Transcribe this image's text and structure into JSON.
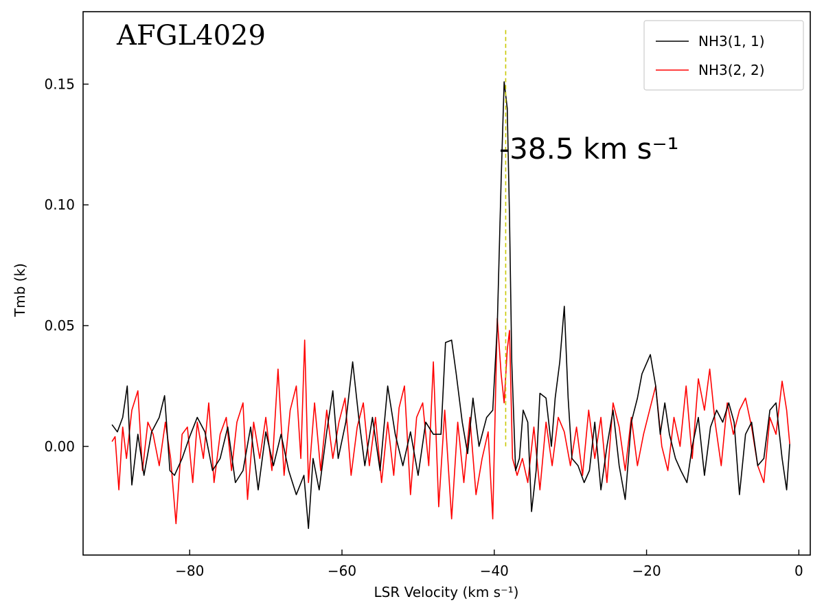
{
  "chart_data": {
    "type": "line",
    "title": "AFGL4029",
    "xlabel": "LSR Velocity (km s⁻¹)",
    "ylabel": "Tmb (k)",
    "xlim": [
      -94,
      1.5
    ],
    "ylim": [
      -0.045,
      0.18
    ],
    "x_ticks": [
      -80,
      -60,
      -40,
      -20,
      0
    ],
    "x_tick_labels": [
      "−80",
      "−60",
      "−40",
      "−20",
      "0"
    ],
    "y_ticks": [
      0.0,
      0.05,
      0.1,
      0.15
    ],
    "y_tick_labels": [
      "0.00",
      "0.05",
      "0.10",
      "0.15"
    ],
    "grid": false,
    "legend_position": "top-right",
    "annotation": {
      "text": "-38.5 km s⁻¹",
      "x": -38.5,
      "line_y_range": [
        0.0,
        0.173
      ],
      "line_color": "#c8c800"
    },
    "series": [
      {
        "name": "NH3(1, 1)",
        "color": "#000000",
        "points": [
          [
            -90.2,
            0.009
          ],
          [
            -89.5,
            0.006
          ],
          [
            -88.8,
            0.012
          ],
          [
            -88.2,
            0.025
          ],
          [
            -87.6,
            -0.016
          ],
          [
            -86.8,
            0.005
          ],
          [
            -86.0,
            -0.012
          ],
          [
            -85.0,
            0.006
          ],
          [
            -84.0,
            0.012
          ],
          [
            -83.3,
            0.021
          ],
          [
            -82.6,
            -0.01
          ],
          [
            -82.0,
            -0.012
          ],
          [
            -81.0,
            -0.005
          ],
          [
            -80.0,
            0.004
          ],
          [
            -79.0,
            0.012
          ],
          [
            -78.0,
            0.006
          ],
          [
            -77.0,
            -0.01
          ],
          [
            -76.0,
            -0.005
          ],
          [
            -75.0,
            0.008
          ],
          [
            -74.0,
            -0.015
          ],
          [
            -73.0,
            -0.01
          ],
          [
            -72.0,
            0.008
          ],
          [
            -71.0,
            -0.018
          ],
          [
            -70.0,
            0.006
          ],
          [
            -69.0,
            -0.008
          ],
          [
            -68.0,
            0.005
          ],
          [
            -67.0,
            -0.01
          ],
          [
            -66.0,
            -0.02
          ],
          [
            -65.0,
            -0.012
          ],
          [
            -64.4,
            -0.034
          ],
          [
            -63.8,
            -0.005
          ],
          [
            -63.0,
            -0.018
          ],
          [
            -62.0,
            0.006
          ],
          [
            -61.2,
            0.023
          ],
          [
            -60.5,
            -0.005
          ],
          [
            -59.5,
            0.01
          ],
          [
            -58.6,
            0.035
          ],
          [
            -57.8,
            0.012
          ],
          [
            -57.0,
            -0.008
          ],
          [
            -56.0,
            0.012
          ],
          [
            -55.0,
            -0.01
          ],
          [
            -54.0,
            0.025
          ],
          [
            -53.0,
            0.005
          ],
          [
            -52.0,
            -0.008
          ],
          [
            -51.0,
            0.006
          ],
          [
            -50.0,
            -0.012
          ],
          [
            -49.0,
            0.01
          ],
          [
            -48.0,
            0.005
          ],
          [
            -47.0,
            0.005
          ],
          [
            -46.4,
            0.043
          ],
          [
            -45.6,
            0.044
          ],
          [
            -45.0,
            0.03
          ],
          [
            -44.2,
            0.01
          ],
          [
            -43.5,
            -0.003
          ],
          [
            -42.8,
            0.02
          ],
          [
            -42.0,
            0.0
          ],
          [
            -41.0,
            0.012
          ],
          [
            -40.2,
            0.015
          ],
          [
            -39.6,
            0.05
          ],
          [
            -39.1,
            0.11
          ],
          [
            -38.7,
            0.151
          ],
          [
            -38.3,
            0.14
          ],
          [
            -38.0,
            0.095
          ],
          [
            -37.7,
            0.035
          ],
          [
            -37.2,
            -0.01
          ],
          [
            -36.7,
            -0.005
          ],
          [
            -36.2,
            0.015
          ],
          [
            -35.6,
            0.01
          ],
          [
            -35.1,
            -0.027
          ],
          [
            -34.5,
            -0.01
          ],
          [
            -34.0,
            0.022
          ],
          [
            -33.2,
            0.02
          ],
          [
            -32.5,
            0.0
          ],
          [
            -32.0,
            0.02
          ],
          [
            -31.4,
            0.035
          ],
          [
            -30.8,
            0.058
          ],
          [
            -30.3,
            0.02
          ],
          [
            -29.8,
            -0.005
          ],
          [
            -29.0,
            -0.008
          ],
          [
            -28.2,
            -0.015
          ],
          [
            -27.5,
            -0.01
          ],
          [
            -26.8,
            0.01
          ],
          [
            -26.0,
            -0.018
          ],
          [
            -25.2,
            0.0
          ],
          [
            -24.4,
            0.015
          ],
          [
            -23.6,
            -0.008
          ],
          [
            -22.8,
            -0.022
          ],
          [
            -22.0,
            0.01
          ],
          [
            -21.2,
            0.02
          ],
          [
            -20.6,
            0.03
          ],
          [
            -19.5,
            0.038
          ],
          [
            -18.8,
            0.025
          ],
          [
            -18.2,
            0.005
          ],
          [
            -17.6,
            0.018
          ],
          [
            -17.0,
            0.005
          ],
          [
            -16.2,
            -0.005
          ],
          [
            -15.5,
            -0.01
          ],
          [
            -14.7,
            -0.015
          ],
          [
            -14.0,
            0.0
          ],
          [
            -13.2,
            0.012
          ],
          [
            -12.4,
            -0.012
          ],
          [
            -11.6,
            0.008
          ],
          [
            -10.8,
            0.015
          ],
          [
            -10.0,
            0.01
          ],
          [
            -9.2,
            0.018
          ],
          [
            -8.5,
            0.01
          ],
          [
            -7.8,
            -0.02
          ],
          [
            -7.0,
            0.005
          ],
          [
            -6.2,
            0.01
          ],
          [
            -5.4,
            -0.008
          ],
          [
            -4.6,
            -0.005
          ],
          [
            -3.8,
            0.015
          ],
          [
            -3.0,
            0.018
          ],
          [
            -2.2,
            -0.005
          ],
          [
            -1.6,
            -0.018
          ],
          [
            -1.2,
            0.001
          ]
        ]
      },
      {
        "name": "NH3(2, 2)",
        "color": "#ff0000",
        "points": [
          [
            -90.2,
            0.002
          ],
          [
            -89.8,
            0.004
          ],
          [
            -89.3,
            -0.018
          ],
          [
            -88.8,
            0.008
          ],
          [
            -88.3,
            -0.005
          ],
          [
            -87.6,
            0.015
          ],
          [
            -86.8,
            0.023
          ],
          [
            -86.2,
            -0.01
          ],
          [
            -85.5,
            0.01
          ],
          [
            -84.8,
            0.005
          ],
          [
            -84.0,
            -0.008
          ],
          [
            -83.2,
            0.01
          ],
          [
            -82.5,
            -0.005
          ],
          [
            -81.8,
            -0.032
          ],
          [
            -81.0,
            0.005
          ],
          [
            -80.3,
            0.008
          ],
          [
            -79.6,
            -0.015
          ],
          [
            -79.0,
            0.01
          ],
          [
            -78.2,
            -0.005
          ],
          [
            -77.5,
            0.018
          ],
          [
            -76.8,
            -0.015
          ],
          [
            -76.0,
            0.005
          ],
          [
            -75.2,
            0.012
          ],
          [
            -74.5,
            -0.01
          ],
          [
            -73.8,
            0.01
          ],
          [
            -73.0,
            0.018
          ],
          [
            -72.4,
            -0.022
          ],
          [
            -71.6,
            0.01
          ],
          [
            -70.8,
            -0.005
          ],
          [
            -70.0,
            0.012
          ],
          [
            -69.2,
            -0.01
          ],
          [
            -68.4,
            0.032
          ],
          [
            -67.6,
            -0.012
          ],
          [
            -66.8,
            0.015
          ],
          [
            -66.0,
            0.025
          ],
          [
            -65.4,
            -0.005
          ],
          [
            -64.9,
            0.044
          ],
          [
            -64.4,
            -0.015
          ],
          [
            -63.6,
            0.018
          ],
          [
            -62.8,
            -0.01
          ],
          [
            -62.0,
            0.015
          ],
          [
            -61.2,
            -0.005
          ],
          [
            -60.4,
            0.01
          ],
          [
            -59.6,
            0.02
          ],
          [
            -58.8,
            -0.012
          ],
          [
            -58.0,
            0.008
          ],
          [
            -57.2,
            0.018
          ],
          [
            -56.4,
            -0.008
          ],
          [
            -55.6,
            0.012
          ],
          [
            -54.8,
            -0.015
          ],
          [
            -54.0,
            0.01
          ],
          [
            -53.2,
            -0.012
          ],
          [
            -52.5,
            0.016
          ],
          [
            -51.8,
            0.025
          ],
          [
            -51.0,
            -0.02
          ],
          [
            -50.2,
            0.012
          ],
          [
            -49.4,
            0.018
          ],
          [
            -48.6,
            -0.008
          ],
          [
            -48.0,
            0.035
          ],
          [
            -47.3,
            -0.025
          ],
          [
            -46.5,
            0.015
          ],
          [
            -45.6,
            -0.03
          ],
          [
            -44.8,
            0.01
          ],
          [
            -44.0,
            -0.015
          ],
          [
            -43.2,
            0.012
          ],
          [
            -42.4,
            -0.02
          ],
          [
            -41.6,
            -0.005
          ],
          [
            -40.8,
            0.006
          ],
          [
            -40.2,
            -0.03
          ],
          [
            -39.6,
            0.053
          ],
          [
            -39.1,
            0.03
          ],
          [
            -38.7,
            0.018
          ],
          [
            -38.3,
            0.04
          ],
          [
            -38.0,
            0.048
          ],
          [
            -37.6,
            -0.005
          ],
          [
            -37.0,
            -0.012
          ],
          [
            -36.3,
            -0.005
          ],
          [
            -35.6,
            -0.015
          ],
          [
            -34.8,
            0.008
          ],
          [
            -34.0,
            -0.018
          ],
          [
            -33.2,
            0.01
          ],
          [
            -32.4,
            -0.008
          ],
          [
            -31.6,
            0.012
          ],
          [
            -30.8,
            0.006
          ],
          [
            -30.0,
            -0.008
          ],
          [
            -29.2,
            0.008
          ],
          [
            -28.4,
            -0.012
          ],
          [
            -27.6,
            0.015
          ],
          [
            -26.8,
            -0.005
          ],
          [
            -26.0,
            0.012
          ],
          [
            -25.2,
            -0.015
          ],
          [
            -24.4,
            0.018
          ],
          [
            -23.6,
            0.008
          ],
          [
            -22.8,
            -0.01
          ],
          [
            -22.0,
            0.012
          ],
          [
            -21.2,
            -0.008
          ],
          [
            -20.4,
            0.005
          ],
          [
            -19.6,
            0.015
          ],
          [
            -18.8,
            0.025
          ],
          [
            -18.0,
            0.0
          ],
          [
            -17.2,
            -0.01
          ],
          [
            -16.4,
            0.012
          ],
          [
            -15.6,
            0.0
          ],
          [
            -14.8,
            0.025
          ],
          [
            -14.0,
            -0.005
          ],
          [
            -13.2,
            0.028
          ],
          [
            -12.4,
            0.015
          ],
          [
            -11.7,
            0.032
          ],
          [
            -11.0,
            0.01
          ],
          [
            -10.2,
            -0.008
          ],
          [
            -9.4,
            0.018
          ],
          [
            -8.6,
            0.005
          ],
          [
            -7.8,
            0.015
          ],
          [
            -7.0,
            0.02
          ],
          [
            -6.2,
            0.008
          ],
          [
            -5.4,
            -0.008
          ],
          [
            -4.6,
            -0.015
          ],
          [
            -3.8,
            0.012
          ],
          [
            -3.0,
            0.005
          ],
          [
            -2.2,
            0.027
          ],
          [
            -1.6,
            0.015
          ],
          [
            -1.2,
            0.001
          ]
        ]
      }
    ]
  }
}
